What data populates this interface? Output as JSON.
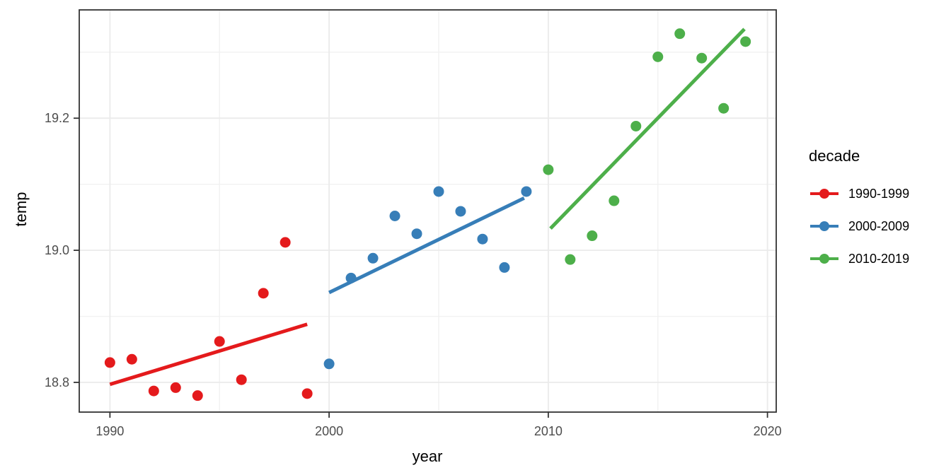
{
  "chart_data": {
    "type": "scatter",
    "title": "",
    "xlabel": "year",
    "ylabel": "temp",
    "legend_title": "decade",
    "legend_position": "right",
    "grid": true,
    "x_domain": [
      1988.6,
      2020.4
    ],
    "y_domain": [
      18.755,
      19.364
    ],
    "x_ticks": [
      1990,
      2000,
      2010,
      2020
    ],
    "x_tick_labels": [
      "1990",
      "2000",
      "2010",
      "2020"
    ],
    "x_minor": [
      1995,
      2005,
      2015
    ],
    "y_ticks": [
      18.8,
      19.0,
      19.2
    ],
    "y_tick_labels": [
      "18.8",
      "19.0",
      "19.2"
    ],
    "y_minor": [
      18.9,
      19.1,
      19.3
    ],
    "styles": {
      "background": "#ffffff",
      "panel_border": "#333333",
      "grid_major": "#ebebeb",
      "grid_minor": "#f1f1f1",
      "tick_color": "#333333",
      "tick_label_color": "#4d4d4d",
      "point_radius": 7.5,
      "trend_width": 5
    },
    "series": [
      {
        "name": "1990-1999",
        "color": "#e41a1c",
        "x": [
          1990,
          1991,
          1992,
          1993,
          1994,
          1995,
          1996,
          1997,
          1998,
          1999
        ],
        "y": [
          18.83,
          18.835,
          18.787,
          18.792,
          18.78,
          18.862,
          18.804,
          18.935,
          19.012,
          18.783
        ],
        "trend": {
          "x": [
            1990.0,
            1999.0
          ],
          "y": [
            18.797,
            18.888
          ]
        }
      },
      {
        "name": "2000-2009",
        "color": "#377eb8",
        "x": [
          2000,
          2001,
          2002,
          2003,
          2004,
          2005,
          2006,
          2007,
          2008,
          2009
        ],
        "y": [
          18.828,
          18.958,
          18.988,
          19.052,
          19.025,
          19.089,
          19.059,
          19.017,
          18.974,
          19.089
        ],
        "trend": {
          "x": [
            2000.0,
            2008.9
          ],
          "y": [
            18.936,
            19.079
          ]
        }
      },
      {
        "name": "2010-2019",
        "color": "#4daf4a",
        "x": [
          2010,
          2011,
          2012,
          2013,
          2014,
          2015,
          2016,
          2017,
          2018,
          2019
        ],
        "y": [
          19.122,
          18.986,
          19.022,
          19.075,
          19.188,
          19.293,
          19.328,
          19.291,
          19.215,
          19.316
        ],
        "trend": {
          "x": [
            2010.1,
            2018.95
          ],
          "y": [
            19.033,
            19.335
          ]
        }
      }
    ]
  }
}
